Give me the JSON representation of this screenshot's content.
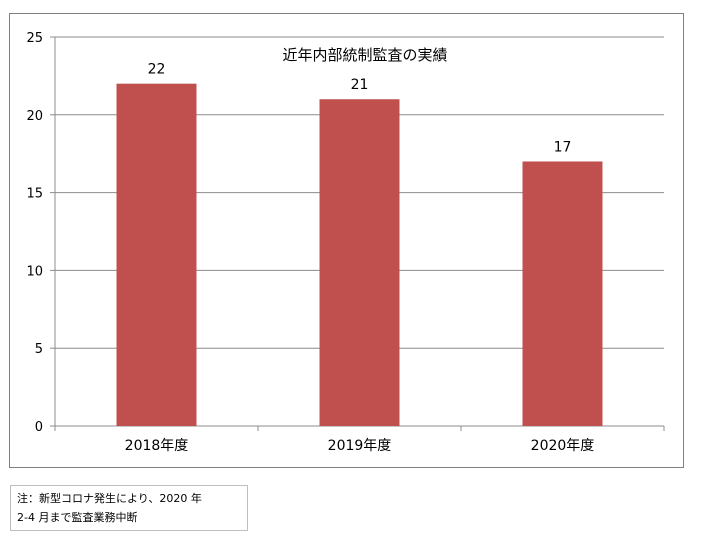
{
  "chart_data": {
    "type": "bar",
    "title": "近年内部統制監査の実績",
    "categories": [
      "2018年度",
      "2019年度",
      "2020年度"
    ],
    "values": [
      22,
      21,
      17
    ],
    "data_labels": [
      "22",
      "21",
      "17"
    ],
    "ylim": [
      0,
      25
    ],
    "yticks": [
      0,
      5,
      10,
      15,
      20,
      25
    ],
    "xlabel": "",
    "ylabel": "",
    "grid": true,
    "bar_color": "#c0504d"
  },
  "note": {
    "line1": "注：新型コロナ発生により、2020 年",
    "line2": "2-4 月まで監査業務中断"
  }
}
